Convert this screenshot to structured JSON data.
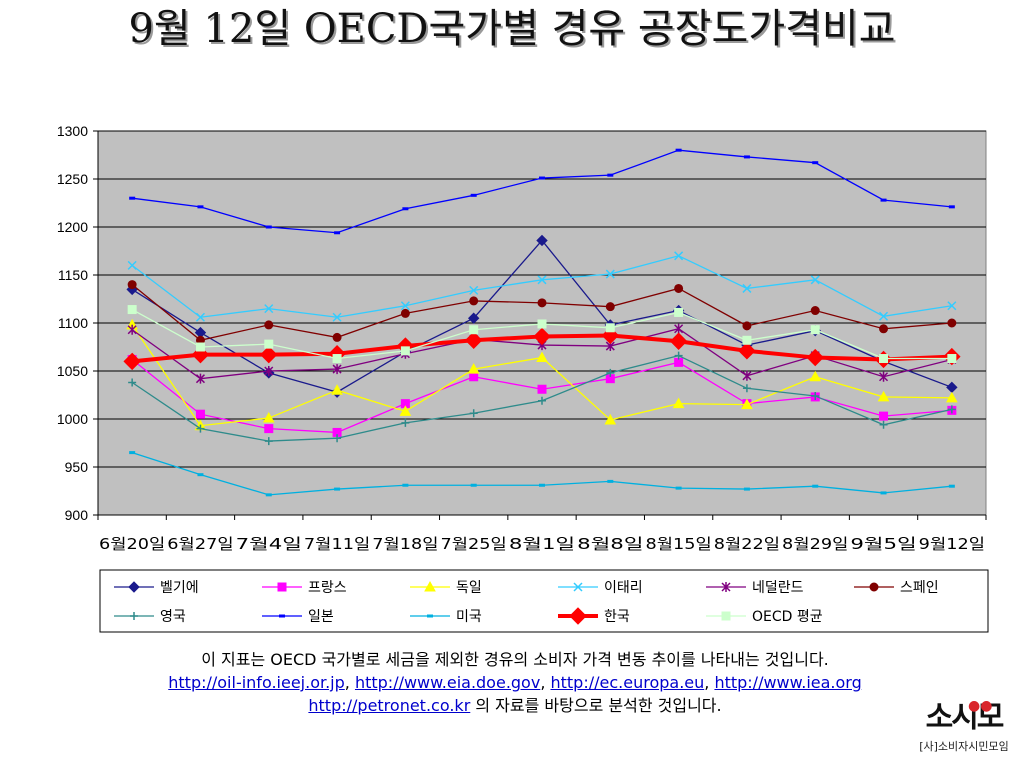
{
  "chart_data": {
    "type": "line",
    "title": "9월 12일 OECD국가별 경유 공장도가격비교",
    "xlabel": "",
    "ylabel": "",
    "ylim": [
      900,
      1300
    ],
    "yticks": [
      900,
      950,
      1000,
      1050,
      1100,
      1150,
      1200,
      1250,
      1300
    ],
    "grid": true,
    "legend_position": "bottom",
    "categories": [
      "6월20일",
      "6월27일",
      "7월4일",
      "7월11일",
      "7월18일",
      "7월25일",
      "8월1일",
      "8월8일",
      "8월15일",
      "8월22일",
      "8월29일",
      "9월5일",
      "9월12일"
    ],
    "series": [
      {
        "name": "벨기에",
        "color": "#1a1a8c",
        "marker": "diamond",
        "values": [
          1135,
          1090,
          1048,
          1028,
          1070,
          1105,
          1186,
          1098,
          1113,
          1077,
          1092,
          1060,
          1033
        ]
      },
      {
        "name": "프랑스",
        "color": "#ff00ff",
        "marker": "square",
        "values": [
          1062,
          1005,
          990,
          986,
          1016,
          1044,
          1031,
          1042,
          1059,
          1016,
          1023,
          1003,
          1009
        ]
      },
      {
        "name": "독일",
        "color": "#ffff00",
        "marker": "triangle",
        "values": [
          1098,
          993,
          1001,
          1030,
          1008,
          1052,
          1064,
          999,
          1016,
          1015,
          1044,
          1023,
          1022
        ]
      },
      {
        "name": "이태리",
        "color": "#33ccff",
        "marker": "x",
        "values": [
          1160,
          1106,
          1115,
          1106,
          1118,
          1134,
          1145,
          1151,
          1170,
          1136,
          1145,
          1107,
          1118
        ]
      },
      {
        "name": "네덜란드",
        "color": "#800080",
        "marker": "star",
        "values": [
          1093,
          1042,
          1050,
          1052,
          1068,
          1083,
          1077,
          1076,
          1094,
          1045,
          1066,
          1044,
          1062
        ]
      },
      {
        "name": "스페인",
        "color": "#800000",
        "marker": "circle",
        "values": [
          1140,
          1082,
          1098,
          1085,
          1110,
          1123,
          1121,
          1117,
          1136,
          1097,
          1113,
          1094,
          1100
        ]
      },
      {
        "name": "영국",
        "color": "#2e8b8b",
        "marker": "plus",
        "values": [
          1038,
          990,
          977,
          980,
          996,
          1006,
          1019,
          1048,
          1066,
          1032,
          1024,
          994,
          1010
        ]
      },
      {
        "name": "일본",
        "color": "#0000ff",
        "marker": "dash",
        "values": [
          1230,
          1221,
          1200,
          1194,
          1219,
          1233,
          1251,
          1254,
          1280,
          1273,
          1267,
          1228,
          1221
        ]
      },
      {
        "name": "미국",
        "color": "#00b0e0",
        "marker": "dash",
        "values": [
          965,
          942,
          921,
          927,
          931,
          931,
          931,
          935,
          928,
          927,
          930,
          923,
          930
        ]
      },
      {
        "name": "한국",
        "color": "#ff0000",
        "marker": "diamond-large",
        "values": [
          1060,
          1067,
          1067,
          1068,
          1076,
          1082,
          1086,
          1087,
          1081,
          1071,
          1064,
          1062,
          1065
        ]
      },
      {
        "name": "OECD 평균",
        "color": "#ccffcc",
        "marker": "square",
        "values": [
          1114,
          1075,
          1078,
          1063,
          1071,
          1093,
          1099,
          1095,
          1111,
          1082,
          1093,
          1063,
          1063
        ]
      }
    ],
    "plot_background": "#c0c0c0"
  },
  "notes": {
    "line1": "이 지표는 OECD 국가별로 세금을 제외한 경유의 소비자 가격 변동 추이를 나타내는 것입니다.",
    "links": [
      "http://oil-info.ieej.or.jp",
      "http://www.eia.doe.gov",
      "http://ec.europa.eu",
      "http://www.iea.org"
    ],
    "link_separator": ", ",
    "link_last": "http://petronet.co.kr",
    "line3_suffix": " 의 자료를 바탕으로 분석한 것입니다."
  },
  "logo": {
    "mark": "소시모",
    "subtitle": "[사]소비자시민모임"
  }
}
